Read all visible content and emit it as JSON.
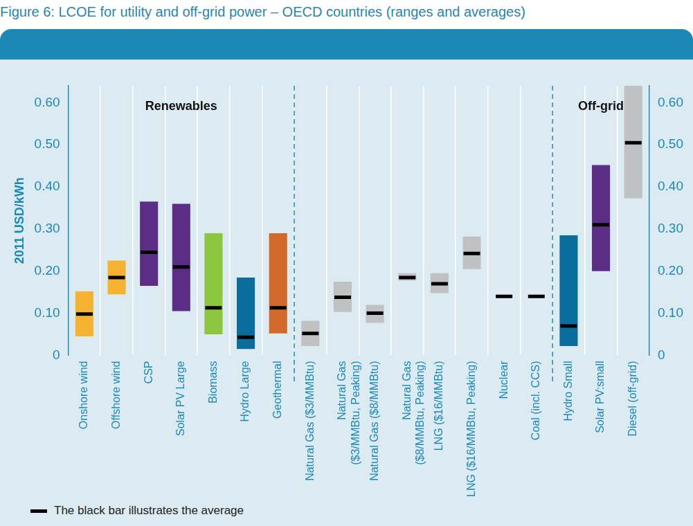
{
  "chart_data": {
    "type": "floating_bar",
    "title": "Figure 6: LCOE for utility and off-grid power – OECD countries (ranges and averages)",
    "y_label": "2011 USD/kWh",
    "categories": [
      "Onshore wind",
      "Offshore wind",
      "CSP",
      "Solar PV Large",
      "Biomass",
      "Hydro Large",
      "Geothermal",
      "Natural Gas ($3/MMBtu)",
      "Natural Gas ($3/MMBtu, Peaking)",
      "Natural Gas ($8/MMBtu)",
      "Natural Gas ($8/MMBtu, Peaking)",
      "LNG ($16/MMBtu)",
      "LNG ($16/MMBtu, Peaking)",
      "Nuclear",
      "Coal (incl. CCS)",
      "Hydro Small",
      "Solar PV:small",
      "Diesel (off-grid)"
    ],
    "values": [
      [
        0.045,
        0.152
      ],
      [
        0.145,
        0.225
      ],
      [
        0.165,
        0.365
      ],
      [
        0.105,
        0.36
      ],
      [
        0.05,
        0.29
      ],
      [
        0.015,
        0.185
      ],
      [
        0.052,
        0.29
      ],
      [
        0.022,
        0.082
      ],
      [
        0.103,
        0.175
      ],
      [
        0.077,
        0.12
      ],
      [
        0.178,
        0.195
      ],
      [
        0.148,
        0.195
      ],
      [
        0.205,
        0.282
      ],
      null,
      null,
      [
        0.022,
        0.285
      ],
      [
        0.2,
        0.452
      ],
      [
        0.373,
        0.64
      ]
    ],
    "averages": [
      0.098,
      0.185,
      0.245,
      0.21,
      0.113,
      0.043,
      0.113,
      0.052,
      0.138,
      0.1,
      0.185,
      0.17,
      0.242,
      0.14,
      0.14,
      0.07,
      0.31,
      0.505
    ],
    "colors": [
      "#f6b331",
      "#f6b331",
      "#5c2d84",
      "#5c2d84",
      "#8cc63f",
      "#0b6d9c",
      "#d1692b",
      "#bfc1c3",
      "#bfc1c3",
      "#bfc1c3",
      "#bfc1c3",
      "#bfc1c3",
      "#bfc1c3",
      "#bfc1c3",
      "#bfc1c3",
      "#0b6d9c",
      "#5c2d84",
      "#bfc1c3"
    ],
    "average_label": "The black bar illustrates the average",
    "legend": "bottom-left",
    "sections": [
      {
        "label": "Renewables",
        "categories": [
          "Onshore wind",
          "Offshore wind",
          "CSP",
          "Solar PV Large",
          "Biomass",
          "Hydro Large",
          "Geothermal"
        ]
      },
      {
        "label": "Off-grid",
        "categories": [
          "Hydro Small",
          "Solar PV:small",
          "Diesel (off-grid)"
        ]
      }
    ],
    "ylim": [
      0,
      0.64
    ],
    "yticks": [
      0,
      {
        "value": 0.1,
        "label": "0.10"
      },
      {
        "value": 0.2,
        "label": "0.20"
      },
      {
        "value": 0.3,
        "label": "0.30"
      },
      {
        "value": 0.4,
        "label": "0.40"
      },
      {
        "value": 0.5,
        "label": "0.50"
      },
      {
        "value": 0.6,
        "label": "0.60"
      }
    ],
    "y2lim": [
      0,
      0.64
    ],
    "y2ticks": [
      0,
      {
        "value": 0.1,
        "label": "0.10"
      },
      {
        "value": 0.2,
        "label": "0.20"
      },
      {
        "value": 0.3,
        "label": "0.30"
      },
      {
        "value": 0.4,
        "label": "0.40"
      },
      {
        "value": 0.5,
        "label": "0.50"
      },
      {
        "value": 0.6,
        "label": "0.60"
      }
    ],
    "grid": "x"
  }
}
